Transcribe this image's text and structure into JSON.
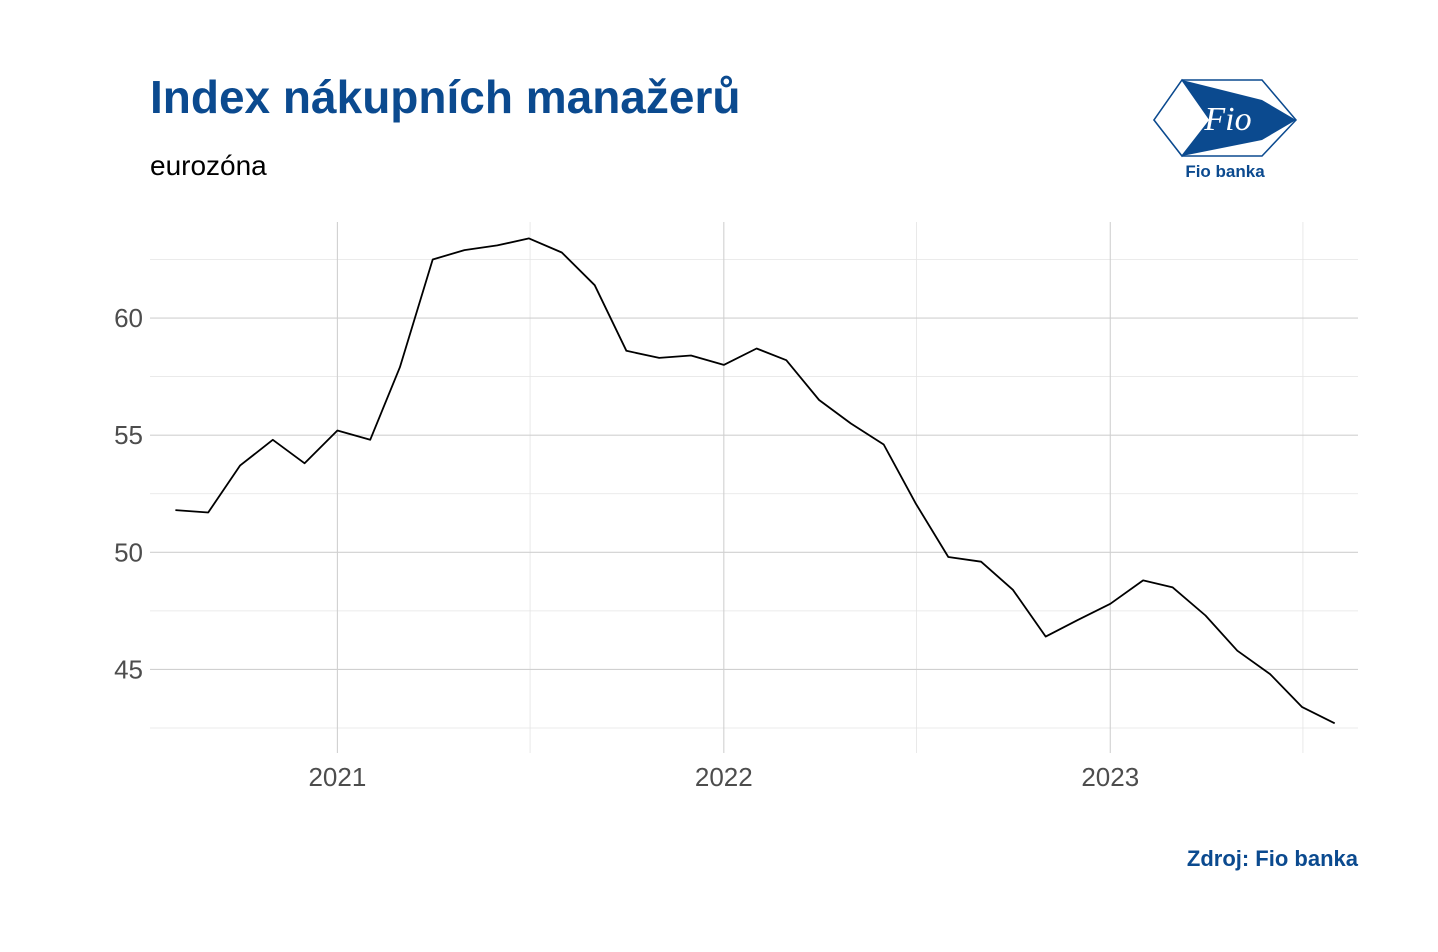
{
  "header": {
    "title": "Index nákupních manažerů",
    "subtitle": "eurozóna"
  },
  "logo": {
    "text": "Fio",
    "caption": "Fio banka",
    "color": "#0b4a8f"
  },
  "footer": {
    "source": "Zdroj: Fio banka"
  },
  "chart_data": {
    "type": "line",
    "title": "Index nákupních manažerů",
    "subtitle": "eurozóna",
    "xlabel": "",
    "ylabel": "",
    "x": [
      "2020-08",
      "2020-09",
      "2020-10",
      "2020-11",
      "2020-12",
      "2021-01",
      "2021-02",
      "2021-03",
      "2021-04",
      "2021-05",
      "2021-06",
      "2021-07",
      "2021-08",
      "2021-09",
      "2021-10",
      "2021-11",
      "2021-12",
      "2022-01",
      "2022-02",
      "2022-03",
      "2022-04",
      "2022-05",
      "2022-06",
      "2022-07",
      "2022-08",
      "2022-09",
      "2022-10",
      "2022-11",
      "2022-12",
      "2023-01",
      "2023-02",
      "2023-03",
      "2023-04",
      "2023-05",
      "2023-06",
      "2023-07",
      "2023-08"
    ],
    "series": [
      {
        "values": [
          51.8,
          51.7,
          53.7,
          54.8,
          53.8,
          55.2,
          54.8,
          57.9,
          62.5,
          62.9,
          63.1,
          63.4,
          62.8,
          61.4,
          58.6,
          58.3,
          58.4,
          58.0,
          58.7,
          58.2,
          56.5,
          55.5,
          54.6,
          52.1,
          49.8,
          49.6,
          48.4,
          46.4,
          47.1,
          47.8,
          48.8,
          48.5,
          47.3,
          45.8,
          44.8,
          43.4,
          42.7
        ],
        "color": "#000000"
      }
    ],
    "xticks": [
      "2021",
      "2022",
      "2023"
    ],
    "yticks": [
      45,
      50,
      55,
      60
    ],
    "ylim": [
      42.2,
      64.1
    ],
    "xlim": [
      "2020-07-08",
      "2023-08-23"
    ],
    "grid": true,
    "legend": "none"
  }
}
